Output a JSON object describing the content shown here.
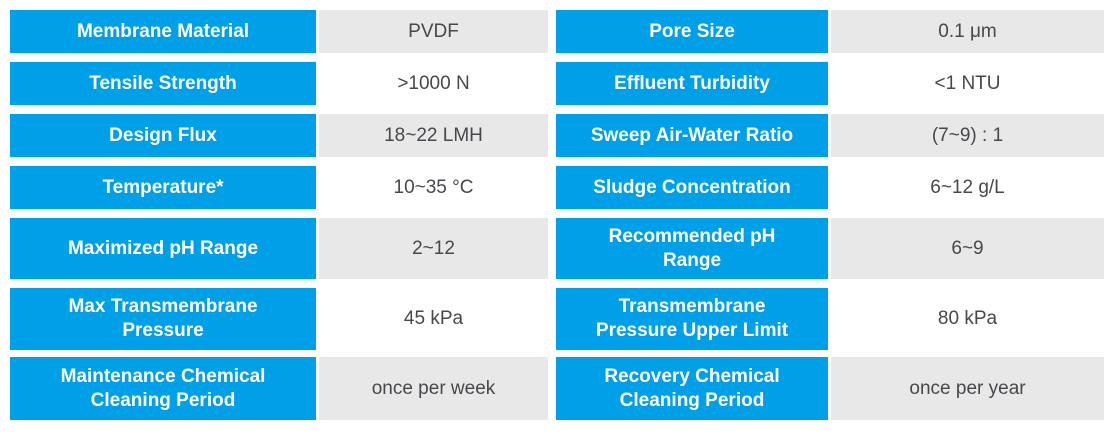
{
  "theme": {
    "accent_blue": "#00A0E9",
    "value_cell_gray": "#E8E8E8",
    "value_cell_white": "#FFFFFF",
    "label_text_color": "#FFFFFF",
    "value_text_color": "#47484C"
  },
  "table": {
    "rows": [
      {
        "left": {
          "label": [
            "Membrane Material"
          ],
          "value": "PVDF"
        },
        "right": {
          "label": [
            "Pore Size"
          ],
          "value": "0.1 μm"
        }
      },
      {
        "left": {
          "label": [
            "Tensile Strength"
          ],
          "value": ">1000 N"
        },
        "right": {
          "label": [
            "Effluent Turbidity"
          ],
          "value": "<1 NTU"
        }
      },
      {
        "left": {
          "label": [
            "Design Flux"
          ],
          "value": "18~22 LMH"
        },
        "right": {
          "label": [
            "Sweep Air-Water Ratio"
          ],
          "value": "(7~9) : 1"
        }
      },
      {
        "left": {
          "label": [
            "Temperature*"
          ],
          "value": "10~35 °C"
        },
        "right": {
          "label": [
            "Sludge Concentration"
          ],
          "value": "6~12 g/L"
        }
      },
      {
        "left": {
          "label": [
            "Maximized pH Range"
          ],
          "value": "2~12"
        },
        "right": {
          "label": [
            "Recommended pH",
            "Range"
          ],
          "value": "6~9"
        }
      },
      {
        "left": {
          "label": [
            "Max Transmembrane",
            "Pressure"
          ],
          "value": "45 kPa"
        },
        "right": {
          "label": [
            "Transmembrane",
            "Pressure Upper Limit"
          ],
          "value": "80 kPa"
        }
      },
      {
        "left": {
          "label": [
            "Maintenance Chemical",
            "Cleaning Period"
          ],
          "value": "once per week"
        },
        "right": {
          "label": [
            "Recovery Chemical",
            "Cleaning Period"
          ],
          "value": "once per year"
        }
      }
    ]
  }
}
